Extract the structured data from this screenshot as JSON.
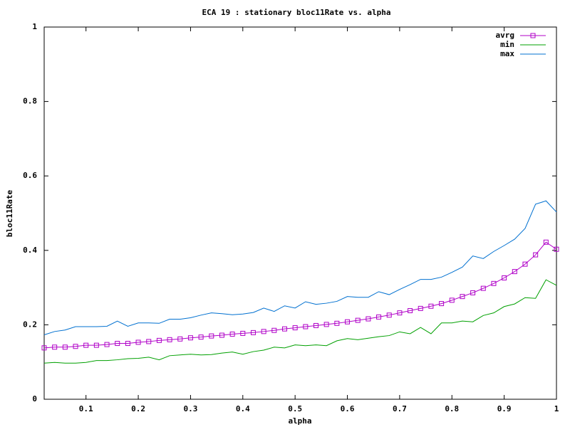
{
  "chart_data": {
    "type": "line",
    "title": "ECA 19 : stationary bloc11Rate vs. alpha",
    "x_label": "alpha",
    "y_label": "bloc11Rate",
    "x": [
      0.02,
      0.04,
      0.06,
      0.08,
      0.1,
      0.12,
      0.14,
      0.16,
      0.18,
      0.2,
      0.22,
      0.24,
      0.26,
      0.28,
      0.3,
      0.32,
      0.34,
      0.36,
      0.38,
      0.4,
      0.42,
      0.44,
      0.46,
      0.48,
      0.5,
      0.52,
      0.54,
      0.56,
      0.58,
      0.6,
      0.62,
      0.64,
      0.66,
      0.68,
      0.7,
      0.72,
      0.74,
      0.76,
      0.78,
      0.8,
      0.82,
      0.84,
      0.86,
      0.88,
      0.9,
      0.92,
      0.94,
      0.96,
      0.98,
      1.0
    ],
    "series": [
      {
        "name": "avrg",
        "color": "#b000c8",
        "marker": "square",
        "values": [
          0.138,
          0.14,
          0.14,
          0.142,
          0.145,
          0.145,
          0.147,
          0.15,
          0.15,
          0.153,
          0.155,
          0.158,
          0.16,
          0.162,
          0.165,
          0.167,
          0.17,
          0.172,
          0.175,
          0.177,
          0.179,
          0.182,
          0.185,
          0.189,
          0.192,
          0.195,
          0.198,
          0.201,
          0.204,
          0.208,
          0.212,
          0.216,
          0.221,
          0.226,
          0.232,
          0.238,
          0.244,
          0.25,
          0.257,
          0.266,
          0.276,
          0.286,
          0.298,
          0.311,
          0.326,
          0.343,
          0.363,
          0.388,
          0.422,
          0.403
        ]
      },
      {
        "name": "min",
        "color": "#00a000",
        "values": [
          0.097,
          0.099,
          0.097,
          0.097,
          0.099,
          0.104,
          0.104,
          0.106,
          0.109,
          0.11,
          0.113,
          0.106,
          0.117,
          0.119,
          0.121,
          0.119,
          0.12,
          0.124,
          0.127,
          0.121,
          0.128,
          0.132,
          0.14,
          0.138,
          0.146,
          0.144,
          0.146,
          0.144,
          0.157,
          0.163,
          0.16,
          0.164,
          0.168,
          0.171,
          0.181,
          0.176,
          0.193,
          0.176,
          0.205,
          0.205,
          0.21,
          0.208,
          0.225,
          0.232,
          0.249,
          0.256,
          0.273,
          0.271,
          0.321,
          0.306
        ]
      },
      {
        "name": "max",
        "color": "#0070d0",
        "values": [
          0.173,
          0.182,
          0.186,
          0.195,
          0.195,
          0.195,
          0.196,
          0.21,
          0.196,
          0.205,
          0.205,
          0.204,
          0.215,
          0.215,
          0.219,
          0.226,
          0.232,
          0.23,
          0.227,
          0.229,
          0.233,
          0.245,
          0.236,
          0.251,
          0.245,
          0.262,
          0.255,
          0.258,
          0.263,
          0.276,
          0.274,
          0.274,
          0.289,
          0.281,
          0.295,
          0.308,
          0.322,
          0.322,
          0.328,
          0.341,
          0.355,
          0.385,
          0.378,
          0.397,
          0.413,
          0.43,
          0.459,
          0.524,
          0.533,
          0.503
        ]
      }
    ],
    "xlim": [
      0.02,
      1
    ],
    "xticks": [
      0.1,
      0.2,
      0.3,
      0.4,
      0.5,
      0.6,
      0.7,
      0.8,
      0.9,
      1
    ],
    "ylim": [
      0,
      1
    ],
    "yticks": [
      0,
      0.2,
      0.4,
      0.6,
      0.8,
      1
    ],
    "legend": "top-right"
  }
}
